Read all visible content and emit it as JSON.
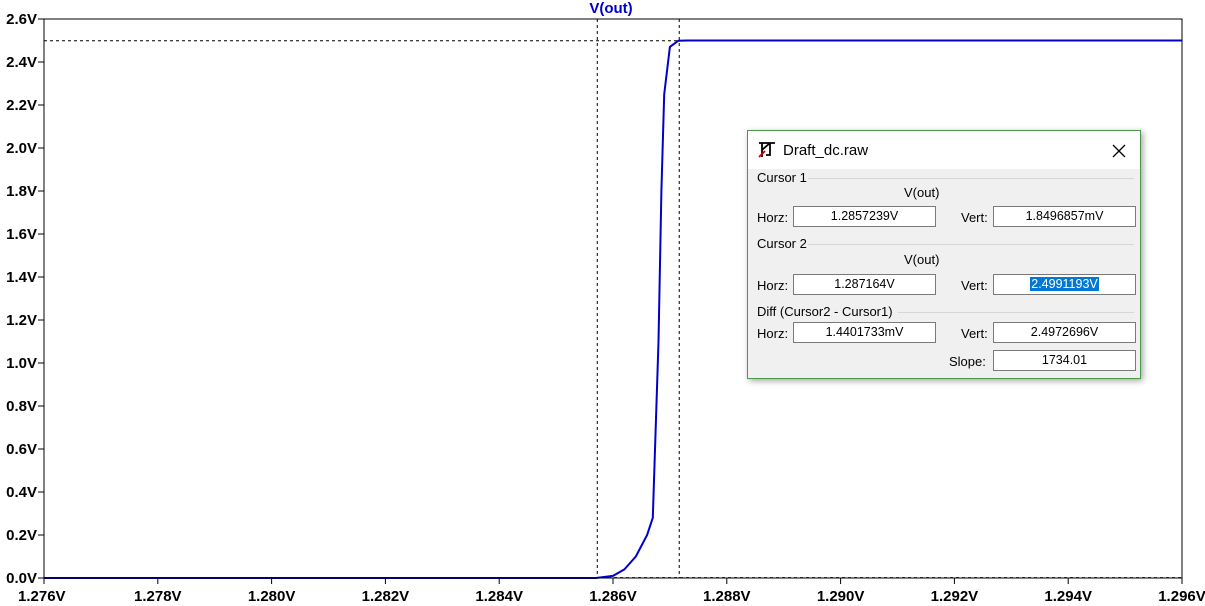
{
  "chart_data": {
    "type": "line",
    "title": "V(out)",
    "xlabel": "",
    "ylabel": "",
    "xlim": [
      1.276,
      1.296
    ],
    "ylim": [
      0.0,
      2.6
    ],
    "x_ticks": [
      "1.276V",
      "1.278V",
      "1.280V",
      "1.282V",
      "1.284V",
      "1.286V",
      "1.288V",
      "1.290V",
      "1.292V",
      "1.294V",
      "1.296V"
    ],
    "y_ticks": [
      "0.0V",
      "0.2V",
      "0.4V",
      "0.6V",
      "0.8V",
      "1.0V",
      "1.2V",
      "1.4V",
      "1.6V",
      "1.8V",
      "2.0V",
      "2.2V",
      "2.4V",
      "2.6V"
    ],
    "grid": false,
    "series": [
      {
        "name": "V(out)",
        "color": "#0000cc",
        "x": [
          1.276,
          1.2857,
          1.286,
          1.2862,
          1.2864,
          1.2866,
          1.2867,
          1.2868,
          1.28685,
          1.2869,
          1.287,
          1.28705,
          1.28715,
          1.2873,
          1.288,
          1.296
        ],
        "y": [
          0.0,
          0.0,
          0.01,
          0.04,
          0.1,
          0.2,
          0.28,
          1.1,
          1.8,
          2.25,
          2.47,
          2.48,
          2.4991,
          2.5,
          2.5,
          2.5
        ]
      }
    ],
    "cursors": [
      {
        "x": 1.2857239,
        "y": 0.0018496857
      },
      {
        "x": 1.287164,
        "y": 2.4991193
      }
    ]
  },
  "dialog": {
    "title": "Draft_dc.raw",
    "cursor1": {
      "label": "Cursor 1",
      "trace": "V(out)",
      "horz_label": "Horz:",
      "horz": "1.2857239V",
      "vert_label": "Vert:",
      "vert": "1.8496857mV"
    },
    "cursor2": {
      "label": "Cursor 2",
      "trace": "V(out)",
      "horz_label": "Horz:",
      "horz": "1.287164V",
      "vert_label": "Vert:",
      "vert": "2.4991193V"
    },
    "diff": {
      "label": "Diff (Cursor2 - Cursor1)",
      "horz_label": "Horz:",
      "horz": "1.4401733mV",
      "vert_label": "Vert:",
      "vert": "2.4972696V",
      "slope_label": "Slope:",
      "slope": "1734.01"
    }
  }
}
